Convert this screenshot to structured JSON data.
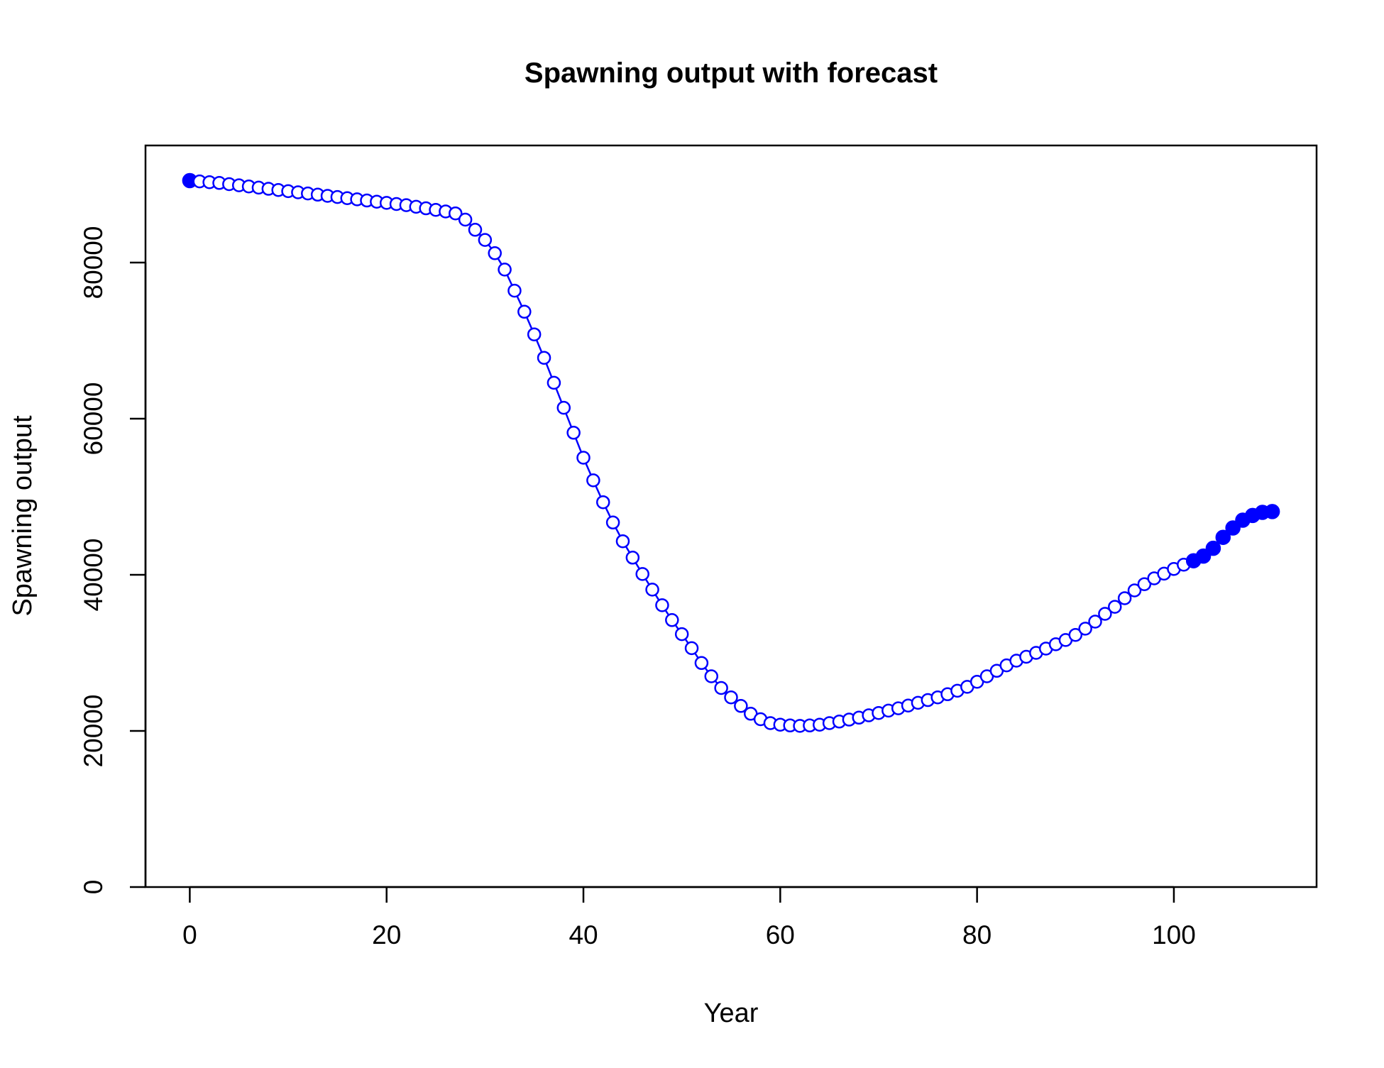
{
  "chart_data": {
    "type": "line",
    "title": "Spawning output with forecast",
    "xlabel": "Year",
    "ylabel": "Spawning output",
    "xlim": [
      -4.5,
      114.5
    ],
    "ylim": [
      0,
      95000
    ],
    "x_ticks": [
      0,
      20,
      40,
      60,
      80,
      100
    ],
    "x_tick_labels": [
      "0",
      "20",
      "40",
      "60",
      "80",
      "100"
    ],
    "y_ticks": [
      0,
      20000,
      40000,
      60000,
      80000
    ],
    "y_tick_labels": [
      "0",
      "20000",
      "40000",
      "60000",
      "80000"
    ],
    "line_color": "#0000ff",
    "marker_style_note": "open circles for historical years; filled circles at year 0 and forecast years 102-110",
    "filled_points_x": [
      0,
      102,
      103,
      104,
      105,
      106,
      107,
      108,
      109,
      110
    ],
    "series": [
      {
        "name": "Spawning output",
        "x": [
          0,
          1,
          2,
          3,
          4,
          5,
          6,
          7,
          8,
          9,
          10,
          11,
          12,
          13,
          14,
          15,
          16,
          17,
          18,
          19,
          20,
          21,
          22,
          23,
          24,
          25,
          26,
          27,
          28,
          29,
          30,
          31,
          32,
          33,
          34,
          35,
          36,
          37,
          38,
          39,
          40,
          41,
          42,
          43,
          44,
          45,
          46,
          47,
          48,
          49,
          50,
          51,
          52,
          53,
          54,
          55,
          56,
          57,
          58,
          59,
          60,
          61,
          62,
          63,
          64,
          65,
          66,
          67,
          68,
          69,
          70,
          71,
          72,
          73,
          74,
          75,
          76,
          77,
          78,
          79,
          80,
          81,
          82,
          83,
          84,
          85,
          86,
          87,
          88,
          89,
          90,
          91,
          92,
          93,
          94,
          95,
          96,
          97,
          98,
          99,
          100,
          101,
          102,
          103,
          104,
          105,
          106,
          107,
          108,
          109,
          110
        ],
        "values": [
          90500,
          90400,
          90300,
          90200,
          90050,
          89900,
          89750,
          89600,
          89450,
          89300,
          89150,
          89000,
          88850,
          88700,
          88550,
          88400,
          88250,
          88100,
          87950,
          87800,
          87650,
          87500,
          87350,
          87150,
          86950,
          86750,
          86550,
          86300,
          85500,
          84200,
          82900,
          81200,
          79100,
          76400,
          73700,
          70800,
          67800,
          64600,
          61400,
          58200,
          55000,
          52100,
          49300,
          46700,
          44300,
          42200,
          40100,
          38100,
          36100,
          34200,
          32400,
          30600,
          28700,
          27000,
          25500,
          24300,
          23200,
          22200,
          21500,
          21000,
          20800,
          20700,
          20650,
          20700,
          20800,
          21000,
          21200,
          21450,
          21700,
          22000,
          22300,
          22600,
          22900,
          23250,
          23600,
          23950,
          24300,
          24700,
          25150,
          25650,
          26300,
          27000,
          27700,
          28400,
          29000,
          29500,
          30000,
          30550,
          31100,
          31650,
          32300,
          33100,
          34000,
          35000,
          35900,
          37000,
          38000,
          38800,
          39550,
          40150,
          40750,
          41300,
          41800,
          42400,
          43400,
          44800,
          46000,
          47000,
          47600,
          48000,
          48100
        ]
      }
    ]
  }
}
